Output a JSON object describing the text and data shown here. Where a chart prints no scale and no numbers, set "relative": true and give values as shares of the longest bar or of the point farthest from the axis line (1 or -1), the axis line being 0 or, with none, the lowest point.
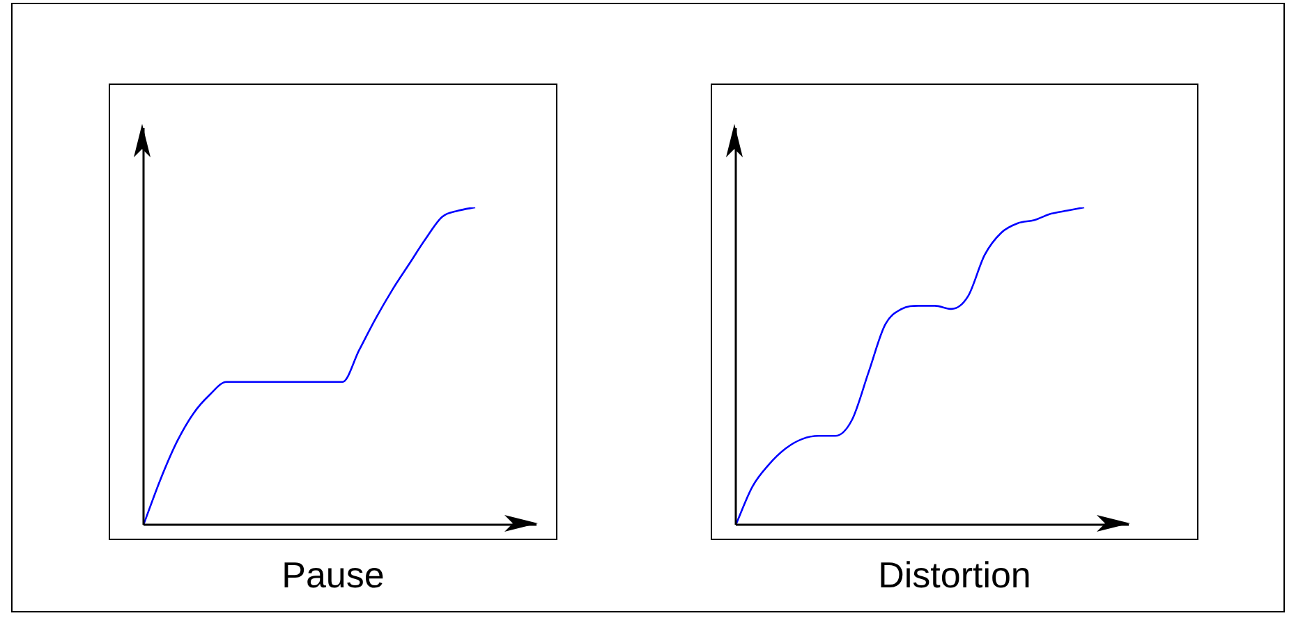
{
  "chart_data": [
    {
      "type": "line",
      "relative": true,
      "xlabel": "Pause",
      "categories": [
        null,
        null,
        null,
        null,
        null,
        null,
        null,
        null,
        null,
        null,
        null,
        null,
        null,
        null,
        null,
        null,
        null,
        null,
        null,
        null,
        null
      ],
      "series": [
        {
          "color": "#0000ff",
          "values": [
            0,
            0.14,
            0.26,
            0.35,
            0.41,
            0.45,
            0.45,
            0.45,
            0.45,
            0.45,
            0.45,
            0.45,
            0.45,
            0.55,
            0.65,
            0.74,
            0.82,
            0.9,
            0.97,
            0.99,
            1
          ]
        }
      ]
    },
    {
      "type": "line",
      "relative": true,
      "xlabel": "Distortion",
      "categories": [
        null,
        null,
        null,
        null,
        null,
        null,
        null,
        null,
        null,
        null,
        null,
        null,
        null,
        null,
        null,
        null,
        null,
        null,
        null,
        null,
        null,
        null
      ],
      "series": [
        {
          "color": "#0000ff",
          "values": [
            0,
            0.12,
            0.19,
            0.24,
            0.27,
            0.28,
            0.28,
            0.33,
            0.48,
            0.63,
            0.68,
            0.69,
            0.69,
            0.68,
            0.72,
            0.85,
            0.92,
            0.95,
            0.96,
            0.98,
            0.99,
            1
          ]
        }
      ]
    }
  ]
}
